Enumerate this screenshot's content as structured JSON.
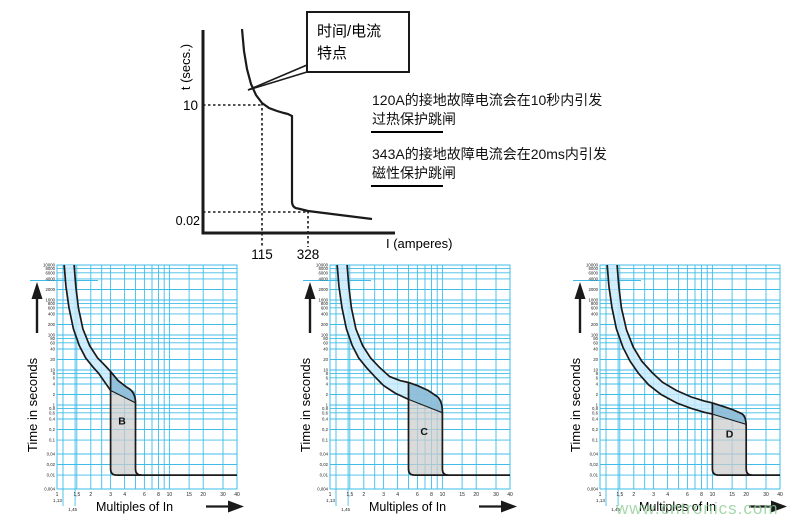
{
  "top_diagram": {
    "y_axis_label": "t (secs.)",
    "x_axis_label": "I (amperes)",
    "tick_10": "10",
    "tick_002": "0.02",
    "tick_115": "115",
    "tick_328": "328",
    "callout_line1": "时间/电流",
    "callout_line2": "特点",
    "note1_line1": "120A的接地故障电流会在10秒内引发",
    "note1_line2": "过热保护跳闸",
    "note2_line1": "343A的接地故障电流会在20ms内引发",
    "note2_line2": "磁性保护跳闸"
  },
  "watermark_text": "www.cntronics.com",
  "colors": {
    "grid": "#3fbde8",
    "band_light": "#c8eafb",
    "band_dark": "#88b7d3",
    "zone_gray": "#cccccc",
    "curve": "#1a1a1a"
  },
  "chart_common": {
    "xlabel": "Multiples of In",
    "ylabel": "Time in seconds",
    "xlim": [
      1,
      40
    ],
    "ylim": [
      0.004,
      10000
    ],
    "x_tick_labels": [
      {
        "v": 1,
        "t": "1"
      },
      {
        "v": 1.5,
        "t": "1,5"
      },
      {
        "v": 2,
        "t": "2"
      },
      {
        "v": 3,
        "t": "3"
      },
      {
        "v": 4,
        "t": "4"
      },
      {
        "v": 6,
        "t": "6"
      },
      {
        "v": 8,
        "t": "8"
      },
      {
        "v": 10,
        "t": "10"
      },
      {
        "v": 15,
        "t": "15"
      },
      {
        "v": 20,
        "t": "20"
      },
      {
        "v": 30,
        "t": "30"
      },
      {
        "v": 40,
        "t": "40"
      }
    ],
    "x_extra_ticks": [
      {
        "v": 1.13,
        "t": "1,13"
      },
      {
        "v": 1.45,
        "t": "1,45"
      }
    ],
    "y_tick_labels": [
      {
        "v": 10000,
        "t": "10000"
      },
      {
        "v": 8000,
        "t": "8000"
      },
      {
        "v": 6000,
        "t": "6000"
      },
      {
        "v": 4000,
        "t": "4000"
      },
      {
        "v": 2000,
        "t": "2000"
      },
      {
        "v": 1000,
        "t": "1000"
      },
      {
        "v": 800,
        "t": "800"
      },
      {
        "v": 600,
        "t": "600"
      },
      {
        "v": 400,
        "t": "400"
      },
      {
        "v": 200,
        "t": "200"
      },
      {
        "v": 100,
        "t": "100"
      },
      {
        "v": 80,
        "t": "80"
      },
      {
        "v": 60,
        "t": "60"
      },
      {
        "v": 40,
        "t": "40"
      },
      {
        "v": 20,
        "t": "20"
      },
      {
        "v": 10,
        "t": "10"
      },
      {
        "v": 8,
        "t": "8"
      },
      {
        "v": 6,
        "t": "6"
      },
      {
        "v": 4,
        "t": "4"
      },
      {
        "v": 2,
        "t": "2"
      },
      {
        "v": 1,
        "t": "1"
      },
      {
        "v": 0.8,
        "t": "0,8"
      },
      {
        "v": 0.6,
        "t": "0,6"
      },
      {
        "v": 0.4,
        "t": "0,4"
      },
      {
        "v": 0.2,
        "t": "0,2"
      },
      {
        "v": 0.1,
        "t": "0,1"
      },
      {
        "v": 0.04,
        "t": "0,04"
      },
      {
        "v": 0.02,
        "t": "0,02"
      },
      {
        "v": 0.01,
        "t": "0,01"
      },
      {
        "v": 0.004,
        "t": "0,004"
      }
    ],
    "x_grid": [
      1,
      1.13,
      1.45,
      1.5,
      2,
      2.5,
      3,
      4,
      5,
      6,
      7,
      8,
      9,
      10,
      15,
      20,
      30,
      40
    ],
    "trip_floor": 0.01,
    "artifact_line_t": 3600
  },
  "chart_data": [
    {
      "type": "area",
      "label": "B",
      "magnetic_range": [
        3,
        5
      ],
      "thermal_lower": [
        [
          1.16,
          10000
        ],
        [
          1.2,
          2500
        ],
        [
          1.28,
          600
        ],
        [
          1.4,
          150
        ],
        [
          1.58,
          50
        ],
        [
          1.8,
          22
        ],
        [
          2.1,
          12
        ],
        [
          2.35,
          8
        ],
        [
          2.7,
          4.2
        ],
        [
          3,
          2.6
        ]
      ],
      "thermal_upper": [
        [
          1.42,
          10000
        ],
        [
          1.47,
          2500
        ],
        [
          1.55,
          600
        ],
        [
          1.7,
          150
        ],
        [
          1.95,
          50
        ],
        [
          2.3,
          22
        ],
        [
          2.7,
          13
        ],
        [
          3.0,
          9
        ],
        [
          3.5,
          5
        ],
        [
          4.2,
          3.2
        ],
        [
          5,
          2.4
        ]
      ],
      "upper_at_left": 9,
      "diagonal": [
        [
          3,
          2.6
        ],
        [
          5,
          1.15
        ]
      ],
      "letter_pos": [
        3.8,
        0.28
      ]
    },
    {
      "type": "area",
      "label": "C",
      "magnetic_range": [
        5,
        10
      ],
      "thermal_lower": [
        [
          1.16,
          10000
        ],
        [
          1.2,
          2500
        ],
        [
          1.28,
          600
        ],
        [
          1.4,
          150
        ],
        [
          1.58,
          50
        ],
        [
          1.8,
          22
        ],
        [
          2.1,
          12
        ],
        [
          2.5,
          6.5
        ],
        [
          3,
          3.6
        ],
        [
          3.8,
          2.2
        ],
        [
          5,
          1.45
        ]
      ],
      "thermal_upper": [
        [
          1.42,
          10000
        ],
        [
          1.47,
          2500
        ],
        [
          1.55,
          600
        ],
        [
          1.7,
          150
        ],
        [
          1.95,
          50
        ],
        [
          2.3,
          22
        ],
        [
          2.75,
          12
        ],
        [
          3.4,
          6.5
        ],
        [
          4.2,
          5
        ],
        [
          5,
          4.4
        ],
        [
          6,
          3.6
        ],
        [
          7.5,
          2.6
        ],
        [
          9,
          1.75
        ],
        [
          10,
          1.3
        ]
      ],
      "upper_at_left": 4.4,
      "diagonal": [
        [
          5,
          1.45
        ],
        [
          10,
          0.6
        ]
      ],
      "letter_pos": [
        6.9,
        0.14
      ]
    },
    {
      "type": "area",
      "label": "D",
      "magnetic_range": [
        10,
        20
      ],
      "thermal_lower": [
        [
          1.16,
          10000
        ],
        [
          1.2,
          2500
        ],
        [
          1.28,
          600
        ],
        [
          1.4,
          150
        ],
        [
          1.6,
          45
        ],
        [
          1.85,
          18
        ],
        [
          2.2,
          8
        ],
        [
          2.7,
          3.8
        ],
        [
          3.5,
          2.0
        ],
        [
          4.8,
          1.15
        ],
        [
          6.5,
          0.8
        ],
        [
          8.5,
          0.62
        ],
        [
          10,
          0.55
        ]
      ],
      "thermal_upper": [
        [
          1.42,
          10000
        ],
        [
          1.47,
          2500
        ],
        [
          1.55,
          600
        ],
        [
          1.72,
          140
        ],
        [
          1.98,
          45
        ],
        [
          2.35,
          18
        ],
        [
          2.9,
          8.5
        ],
        [
          3.6,
          4.5
        ],
        [
          4.8,
          2.6
        ],
        [
          6.5,
          1.7
        ],
        [
          8.5,
          1.3
        ],
        [
          10,
          1.15
        ],
        [
          12,
          0.95
        ],
        [
          15,
          0.75
        ],
        [
          18,
          0.58
        ],
        [
          20,
          0.5
        ]
      ],
      "upper_at_left": 1.15,
      "diagonal": [
        [
          10,
          0.55
        ],
        [
          20,
          0.28
        ]
      ],
      "letter_pos": [
        14.2,
        0.12
      ]
    }
  ]
}
